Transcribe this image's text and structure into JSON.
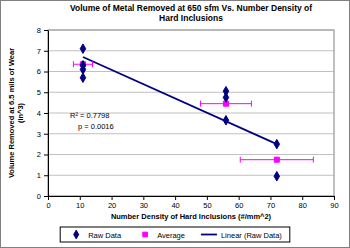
{
  "chart_data": {
    "type": "scatter",
    "title": [
      "Volume of Metal Removed at 650 sfm Vs. Number Density of",
      "Hard Inclusions"
    ],
    "x_label": "Number Density of Hard Inclusions (#/mm^2)",
    "y_label": [
      "Volume Removed at 6.5 mils of Wear",
      "(in^3)"
    ],
    "xlim": [
      0,
      90
    ],
    "xticks": [
      0,
      10,
      20,
      30,
      40,
      50,
      60,
      70,
      80,
      90
    ],
    "ylim": [
      0,
      8
    ],
    "yticks": [
      0,
      1,
      2,
      3,
      4,
      5,
      6,
      7,
      8
    ],
    "grid": true,
    "legend": "bottom",
    "annotations": [
      "R² = 0.7798",
      "p = 0.0016"
    ],
    "series": [
      {
        "name": "Raw Data",
        "color": "#000080",
        "marker": "diamond",
        "x": [
          11,
          11,
          11,
          11,
          56,
          56,
          56,
          72,
          72
        ],
        "values": [
          7.1,
          6.3,
          6.1,
          5.7,
          5.05,
          4.75,
          3.65,
          2.5,
          0.95
        ]
      },
      {
        "name": "Average",
        "color": "#ff00ff",
        "marker": "square",
        "x": [
          11,
          56,
          72
        ],
        "values": [
          6.35,
          4.45,
          1.75
        ],
        "x_error": [
          3,
          8,
          11.5
        ]
      },
      {
        "name": "Linear (Raw Data)",
        "type": "line",
        "color": "#000080",
        "line_style": "solid",
        "x": [
          11,
          72
        ],
        "values": [
          6.7,
          2.5
        ]
      }
    ]
  }
}
